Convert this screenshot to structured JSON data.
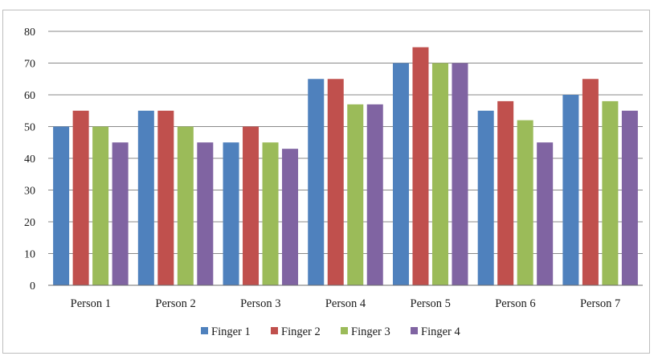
{
  "chart_data": {
    "type": "bar",
    "categories": [
      "Person 1",
      "Person 2",
      "Person 3",
      "Person 4",
      "Person 5",
      "Person 6",
      "Person 7"
    ],
    "series": [
      {
        "name": "Finger 1",
        "color": "#4f81bd",
        "values": [
          50,
          55,
          45,
          65,
          70,
          55,
          60
        ]
      },
      {
        "name": "Finger 2",
        "color": "#c0504d",
        "values": [
          55,
          55,
          50,
          65,
          75,
          58,
          65
        ]
      },
      {
        "name": "Finger 3",
        "color": "#9bbb59",
        "values": [
          50,
          50,
          45,
          57,
          70,
          52,
          58
        ]
      },
      {
        "name": "Finger 4",
        "color": "#8064a2",
        "values": [
          45,
          45,
          43,
          57,
          70,
          45,
          55
        ]
      }
    ],
    "yticks": [
      0,
      10,
      20,
      30,
      40,
      50,
      60,
      70,
      80
    ],
    "ylim": [
      0,
      80
    ],
    "grid": true,
    "legend_position": "bottom"
  }
}
